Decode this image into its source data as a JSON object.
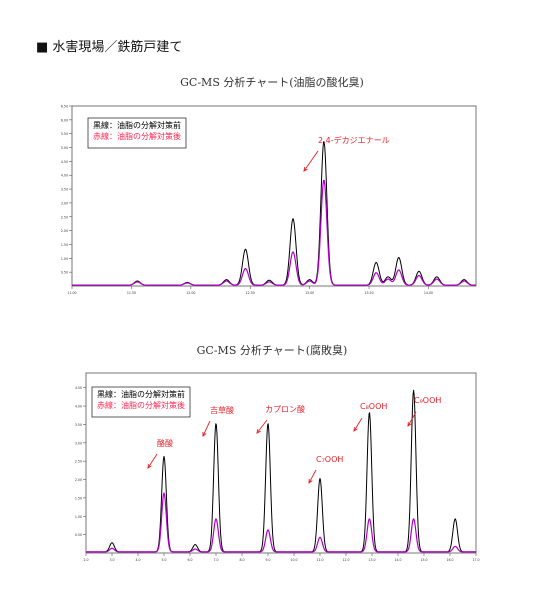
{
  "page": {
    "header": "■ 水害現場／鉄筋戸建て"
  },
  "chart_data": [
    {
      "type": "line",
      "title": "GC-MS 分析チャート(油脂の酸化臭)",
      "legend": {
        "placement": "top-left",
        "entries": [
          {
            "label": "黒線：油脂の分解対策前",
            "color": "#000000"
          },
          {
            "label": "赤線：油脂の分解対策後",
            "color": "#ff2a55"
          }
        ]
      },
      "series": [
        {
          "name": "黒線：油脂の分解対策前",
          "color": "#000000",
          "peaks": [
            {
              "x": 11.55,
              "y": 0.15
            },
            {
              "x": 11.97,
              "y": 0.1
            },
            {
              "x": 12.3,
              "y": 0.2
            },
            {
              "x": 12.46,
              "y": 1.3
            },
            {
              "x": 12.66,
              "y": 0.18
            },
            {
              "x": 12.86,
              "y": 2.4
            },
            {
              "x": 13.0,
              "y": 0.2
            },
            {
              "x": 13.12,
              "y": 5.2
            },
            {
              "x": 13.56,
              "y": 0.82
            },
            {
              "x": 13.66,
              "y": 0.3
            },
            {
              "x": 13.75,
              "y": 1.0
            },
            {
              "x": 13.92,
              "y": 0.5
            },
            {
              "x": 14.07,
              "y": 0.3
            },
            {
              "x": 14.3,
              "y": 0.2
            }
          ]
        },
        {
          "name": "赤線：油脂の分解対策後",
          "color": "#b000c8",
          "peaks": [
            {
              "x": 11.55,
              "y": 0.12
            },
            {
              "x": 11.97,
              "y": 0.08
            },
            {
              "x": 12.3,
              "y": 0.15
            },
            {
              "x": 12.46,
              "y": 0.6
            },
            {
              "x": 12.66,
              "y": 0.12
            },
            {
              "x": 12.86,
              "y": 1.2
            },
            {
              "x": 13.0,
              "y": 0.15
            },
            {
              "x": 13.12,
              "y": 3.8
            },
            {
              "x": 13.56,
              "y": 0.45
            },
            {
              "x": 13.66,
              "y": 0.22
            },
            {
              "x": 13.75,
              "y": 0.55
            },
            {
              "x": 13.92,
              "y": 0.35
            },
            {
              "x": 14.07,
              "y": 0.22
            },
            {
              "x": 14.3,
              "y": 0.15
            }
          ]
        }
      ],
      "xlim": [
        11.0,
        14.4
      ],
      "ylim": [
        0,
        6.5
      ],
      "xticks": [
        "11.00",
        "11.50",
        "12.00",
        "12.50",
        "13.00",
        "13.50",
        "14.00"
      ],
      "yticks": [
        "0.50",
        "1.00",
        "1.50",
        "2.00",
        "2.50",
        "3.00",
        "3.50",
        "4.00",
        "4.50",
        "5.00",
        "5.50",
        "6.00",
        "6.50"
      ],
      "annotations": [
        {
          "text": "2,4-デカジエナール",
          "x": 13.12
        }
      ]
    },
    {
      "type": "line",
      "title": "GC-MS 分析チャート(腐敗臭)",
      "legend": {
        "placement": "top-left",
        "entries": [
          {
            "label": "黒線：油脂の分解対策前",
            "color": "#000000"
          },
          {
            "label": "赤線：油脂の分解対策後",
            "color": "#ff2a55"
          }
        ]
      },
      "series": [
        {
          "name": "黒線：油脂の分解対策前",
          "color": "#000000",
          "peaks": [
            {
              "x": 3.0,
              "y": 0.25
            },
            {
              "x": 5.0,
              "y": 2.6
            },
            {
              "x": 6.2,
              "y": 0.2
            },
            {
              "x": 7.0,
              "y": 3.5
            },
            {
              "x": 9.0,
              "y": 3.5
            },
            {
              "x": 11.0,
              "y": 2.0
            },
            {
              "x": 12.9,
              "y": 3.8
            },
            {
              "x": 14.6,
              "y": 4.4
            },
            {
              "x": 16.2,
              "y": 0.9
            }
          ]
        },
        {
          "name": "赤線：油脂の分解対策後",
          "color": "#b000c8",
          "peaks": [
            {
              "x": 3.0,
              "y": 0.1
            },
            {
              "x": 5.0,
              "y": 1.6
            },
            {
              "x": 6.2,
              "y": 0.08
            },
            {
              "x": 7.0,
              "y": 0.9
            },
            {
              "x": 9.0,
              "y": 0.6
            },
            {
              "x": 11.0,
              "y": 0.4
            },
            {
              "x": 12.9,
              "y": 0.9
            },
            {
              "x": 14.6,
              "y": 0.9
            },
            {
              "x": 16.2,
              "y": 0.15
            }
          ]
        }
      ],
      "xlim": [
        2.0,
        17.0
      ],
      "ylim": [
        0,
        4.9
      ],
      "xticks": [
        "2.0",
        "3.0",
        "4.0",
        "5.0",
        "6.0",
        "7.0",
        "8.0",
        "9.0",
        "10.0",
        "11.0",
        "12.0",
        "13.0",
        "14.0",
        "15.0",
        "16.0",
        "17.0"
      ],
      "yticks": [
        "0.50",
        "1.00",
        "1.50",
        "2.00",
        "2.50",
        "3.00",
        "3.50",
        "4.00",
        "4.50"
      ],
      "annotations": [
        {
          "text": "酪酸",
          "x": 5.0
        },
        {
          "text": "吉草酸",
          "x": 7.0
        },
        {
          "text": "カプロン酸",
          "x": 9.0
        },
        {
          "text": "C₇OOH",
          "x": 11.0
        },
        {
          "text": "C₈OOH",
          "x": 12.9
        },
        {
          "text": "C₉OOH",
          "x": 14.6
        }
      ]
    }
  ]
}
